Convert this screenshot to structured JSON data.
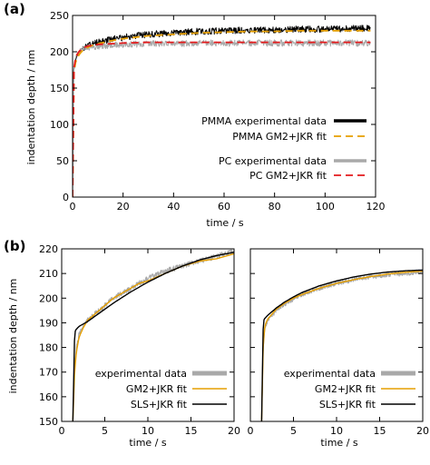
{
  "colors": {
    "pmma_data": "#000000",
    "pmma_fit": "#e69f00",
    "pc_data": "#a9a9a9",
    "pc_fit": "#e41a1c",
    "gm2_fit": "#e69f00",
    "sls_fit": "#000000"
  },
  "chart_data": [
    {
      "type": "line",
      "panel_label": "(a)",
      "xlabel": "time / s",
      "ylabel": "indentation depth / nm",
      "xlim": [
        0,
        120
      ],
      "ylim": [
        0,
        250
      ],
      "xticks": [
        0,
        20,
        40,
        60,
        80,
        100,
        120
      ],
      "yticks": [
        0,
        50,
        100,
        150,
        200,
        250
      ],
      "grid": false,
      "legend_position": "right",
      "series": [
        {
          "name": "PMMA experimental data",
          "style": "noisy-line",
          "color": "#000000",
          "x": [
            0,
            0.2,
            0.5,
            1,
            1.5,
            2,
            3,
            4,
            6,
            8,
            10,
            15,
            20,
            30,
            40,
            50,
            60,
            70,
            80,
            90,
            100,
            110,
            118
          ],
          "y": [
            0,
            120,
            175,
            186,
            192,
            196,
            201,
            204,
            208,
            211,
            213,
            217,
            220,
            224,
            226,
            228,
            229,
            230,
            230,
            231,
            231,
            232,
            232
          ]
        },
        {
          "name": "PMMA GM2+JKR fit",
          "style": "dashed",
          "color": "#e69f00",
          "x": [
            0,
            0.2,
            0.5,
            1,
            1.5,
            2,
            3,
            4,
            6,
            8,
            10,
            15,
            20,
            30,
            40,
            50,
            60,
            70,
            80,
            90,
            100,
            110,
            118
          ],
          "y": [
            0,
            115,
            170,
            183,
            189,
            193,
            198,
            202,
            206,
            209,
            211,
            215,
            218,
            222,
            224,
            226,
            227,
            228,
            228,
            229,
            229,
            229,
            229
          ]
        },
        {
          "name": "PC experimental data",
          "style": "noisy-line",
          "color": "#a9a9a9",
          "x": [
            0,
            0.2,
            0.5,
            1,
            1.5,
            2,
            3,
            4,
            6,
            8,
            10,
            15,
            20,
            30,
            40,
            50,
            60,
            70,
            80,
            90,
            100,
            110,
            118
          ],
          "y": [
            0,
            110,
            178,
            190,
            195,
            198,
            202,
            204,
            206,
            207,
            208,
            209,
            210,
            211,
            211,
            212,
            212,
            212,
            212,
            212,
            212,
            212,
            212
          ]
        },
        {
          "name": "PC GM2+JKR fit",
          "style": "dashed",
          "color": "#e41a1c",
          "x": [
            0,
            0.2,
            0.5,
            1,
            1.5,
            2,
            3,
            4,
            6,
            8,
            10,
            15,
            20,
            30,
            40,
            50,
            60,
            70,
            80,
            90,
            100,
            110,
            118
          ],
          "y": [
            0,
            108,
            176,
            189,
            194,
            198,
            202,
            205,
            208,
            209,
            210,
            211,
            212,
            213,
            213,
            213,
            213,
            213,
            213,
            213,
            213,
            213,
            213
          ]
        }
      ]
    },
    {
      "type": "line",
      "panel_label": "(b)",
      "xlabel": "time / s",
      "ylabel": "indentation depth / nm",
      "xlim": [
        0,
        20
      ],
      "ylim": [
        150,
        220
      ],
      "xticks": [
        0,
        5,
        10,
        15,
        20
      ],
      "yticks": [
        150,
        160,
        170,
        180,
        190,
        200,
        210,
        220
      ],
      "grid": false,
      "legend_position": "bottom-right",
      "series": [
        {
          "name": "experimental data",
          "style": "noisy-line",
          "color": "#a9a9a9",
          "x": [
            1.3,
            1.5,
            1.7,
            2,
            2.5,
            3,
            4,
            5,
            6,
            7,
            8,
            9,
            10,
            12,
            14,
            16,
            18,
            20
          ],
          "y": [
            150,
            172,
            180,
            185,
            189,
            191,
            194,
            197,
            200,
            202,
            204,
            206,
            208,
            211,
            213,
            215,
            217,
            219
          ]
        },
        {
          "name": "GM2+JKR fit",
          "style": "solid",
          "color": "#e69f00",
          "x": [
            1.3,
            1.5,
            1.7,
            2,
            2.5,
            3,
            4,
            5,
            6,
            7,
            8,
            9,
            10,
            12,
            14,
            16,
            18,
            20
          ],
          "y": [
            150,
            170,
            178,
            184,
            188,
            191,
            194,
            197,
            200,
            202,
            204,
            206,
            207,
            210,
            213,
            215,
            216,
            218
          ]
        },
        {
          "name": "SLS+JKR fit",
          "style": "solid",
          "color": "#000000",
          "x": [
            1.3,
            1.5,
            1.6,
            2,
            3,
            4,
            5,
            6,
            8,
            10,
            12,
            14,
            16,
            18,
            20
          ],
          "y": [
            150,
            185,
            187,
            188.5,
            190.5,
            193,
            195.5,
            198,
            202.5,
            206.5,
            210,
            213,
            215.5,
            217.3,
            218.6
          ]
        }
      ]
    },
    {
      "type": "line",
      "panel_label": "",
      "xlabel": "time / s",
      "ylabel": "",
      "xlim": [
        0,
        20
      ],
      "ylim": [
        150,
        220
      ],
      "xticks": [
        0,
        5,
        10,
        15,
        20
      ],
      "yticks": [
        150,
        160,
        170,
        180,
        190,
        200,
        210,
        220
      ],
      "grid": false,
      "legend_position": "bottom-right",
      "series": [
        {
          "name": "experimental data",
          "style": "noisy-line",
          "color": "#a9a9a9",
          "x": [
            1.3,
            1.5,
            1.7,
            2,
            2.5,
            3,
            4,
            5,
            6,
            8,
            10,
            12,
            14,
            16,
            18,
            20
          ],
          "y": [
            150,
            180,
            188,
            191,
            193,
            195,
            197.5,
            199.5,
            201.5,
            204,
            206,
            207.5,
            208.5,
            209.5,
            210,
            210.5
          ]
        },
        {
          "name": "GM2+JKR fit",
          "style": "solid",
          "color": "#e69f00",
          "x": [
            1.3,
            1.5,
            1.7,
            2,
            2.5,
            3,
            4,
            5,
            6,
            8,
            10,
            12,
            14,
            16,
            18,
            20
          ],
          "y": [
            150,
            182,
            189,
            191.5,
            193.5,
            195.5,
            198,
            200,
            201.5,
            204,
            206,
            207.5,
            208.8,
            209.8,
            210.5,
            211
          ]
        },
        {
          "name": "SLS+JKR fit",
          "style": "solid",
          "color": "#000000",
          "x": [
            1.3,
            1.5,
            1.6,
            2,
            3,
            4,
            5,
            6,
            8,
            10,
            12,
            14,
            16,
            18,
            20
          ],
          "y": [
            150,
            190,
            191.5,
            193,
            196,
            198.5,
            200.5,
            202.3,
            205,
            207,
            208.6,
            209.8,
            210.6,
            211.1,
            211.4
          ]
        }
      ]
    }
  ]
}
